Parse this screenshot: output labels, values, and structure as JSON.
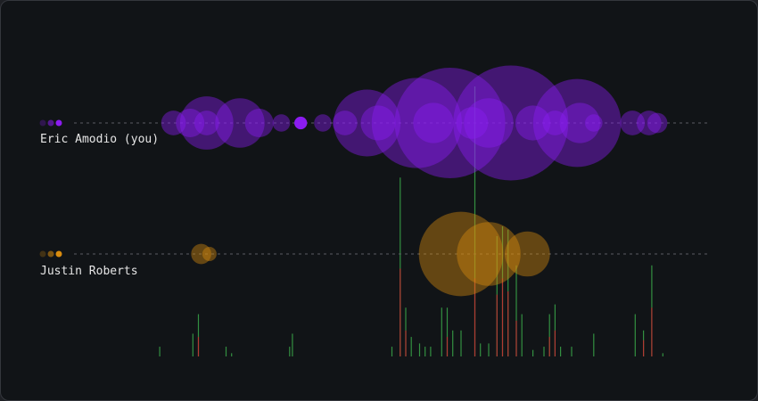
{
  "chart_data": {
    "type": "scatter",
    "title": "",
    "x_range": [
      0,
      100
    ],
    "colors": {
      "Eric Amodio (you)": "#8b1cf0",
      "Justin Roberts": "#d98c0f",
      "additions": "#3fb950",
      "deletions": "#d1242f"
    },
    "series": [
      {
        "name": "Eric Amodio (you)",
        "color": "#8b1cf0",
        "points": [
          {
            "x": 3,
            "size": 3
          },
          {
            "x": 6,
            "size": 4
          },
          {
            "x": 9,
            "size": 14
          },
          {
            "x": 9,
            "size": 3
          },
          {
            "x": 15,
            "size": 12
          },
          {
            "x": 18.5,
            "size": 4
          },
          {
            "x": 22.5,
            "size": 1.5
          },
          {
            "x": 26,
            "size": 0.8
          },
          {
            "x": 30,
            "size": 1.5
          },
          {
            "x": 34,
            "size": 3
          },
          {
            "x": 38,
            "size": 22
          },
          {
            "x": 40,
            "size": 6
          },
          {
            "x": 47,
            "size": 40
          },
          {
            "x": 50,
            "size": 8
          },
          {
            "x": 53,
            "size": 60
          },
          {
            "x": 57,
            "size": 5
          },
          {
            "x": 60,
            "size": 12
          },
          {
            "x": 64,
            "size": 65
          },
          {
            "x": 68,
            "size": 6
          },
          {
            "x": 72,
            "size": 3
          },
          {
            "x": 76,
            "size": 38
          },
          {
            "x": 76.5,
            "size": 8
          },
          {
            "x": 79,
            "size": 1.5
          },
          {
            "x": 86,
            "size": 3
          },
          {
            "x": 89,
            "size": 3
          },
          {
            "x": 90.5,
            "size": 2
          }
        ]
      },
      {
        "name": "Justin Roberts",
        "color": "#d98c0f",
        "points": [
          {
            "x": 8,
            "size": 2
          },
          {
            "x": 9.5,
            "size": 1
          },
          {
            "x": 55,
            "size": 35
          },
          {
            "x": 60,
            "size": 20
          },
          {
            "x": 67,
            "size": 10
          }
        ]
      }
    ],
    "activity": {
      "additions": [
        {
          "x": 0.5,
          "value": 3
        },
        {
          "x": 6.5,
          "value": 7
        },
        {
          "x": 7.5,
          "value": 13
        },
        {
          "x": 12.5,
          "value": 3
        },
        {
          "x": 13.5,
          "value": 1
        },
        {
          "x": 24,
          "value": 3
        },
        {
          "x": 24.5,
          "value": 7
        },
        {
          "x": 42.5,
          "value": 3
        },
        {
          "x": 44,
          "value": 55
        },
        {
          "x": 45,
          "value": 15
        },
        {
          "x": 46,
          "value": 6
        },
        {
          "x": 47.5,
          "value": 4
        },
        {
          "x": 48.5,
          "value": 3
        },
        {
          "x": 49.5,
          "value": 3
        },
        {
          "x": 51.5,
          "value": 15
        },
        {
          "x": 52.5,
          "value": 15
        },
        {
          "x": 53.5,
          "value": 8
        },
        {
          "x": 55,
          "value": 8
        },
        {
          "x": 57.5,
          "value": 83
        },
        {
          "x": 58.5,
          "value": 4
        },
        {
          "x": 60,
          "value": 4
        },
        {
          "x": 61.5,
          "value": 37
        },
        {
          "x": 62.5,
          "value": 40
        },
        {
          "x": 63.5,
          "value": 39
        },
        {
          "x": 65,
          "value": 28
        },
        {
          "x": 66,
          "value": 13
        },
        {
          "x": 68,
          "value": 2
        },
        {
          "x": 70,
          "value": 3
        },
        {
          "x": 71,
          "value": 13
        },
        {
          "x": 72,
          "value": 16
        },
        {
          "x": 73,
          "value": 3
        },
        {
          "x": 75,
          "value": 3
        },
        {
          "x": 79,
          "value": 7
        },
        {
          "x": 86.5,
          "value": 13
        },
        {
          "x": 88,
          "value": 8
        },
        {
          "x": 89.5,
          "value": 28
        },
        {
          "x": 91.5,
          "value": 1
        }
      ],
      "deletions": [
        {
          "x": 7.5,
          "value": 6
        },
        {
          "x": 44,
          "value": 27
        },
        {
          "x": 45,
          "value": 8
        },
        {
          "x": 52.5,
          "value": 6
        },
        {
          "x": 57.5,
          "value": 24
        },
        {
          "x": 61.5,
          "value": 19
        },
        {
          "x": 62.5,
          "value": 24
        },
        {
          "x": 63.5,
          "value": 20
        },
        {
          "x": 65,
          "value": 11
        },
        {
          "x": 71,
          "value": 6
        },
        {
          "x": 72,
          "value": 8
        },
        {
          "x": 88,
          "value": 5
        },
        {
          "x": 89.5,
          "value": 15
        }
      ]
    }
  }
}
